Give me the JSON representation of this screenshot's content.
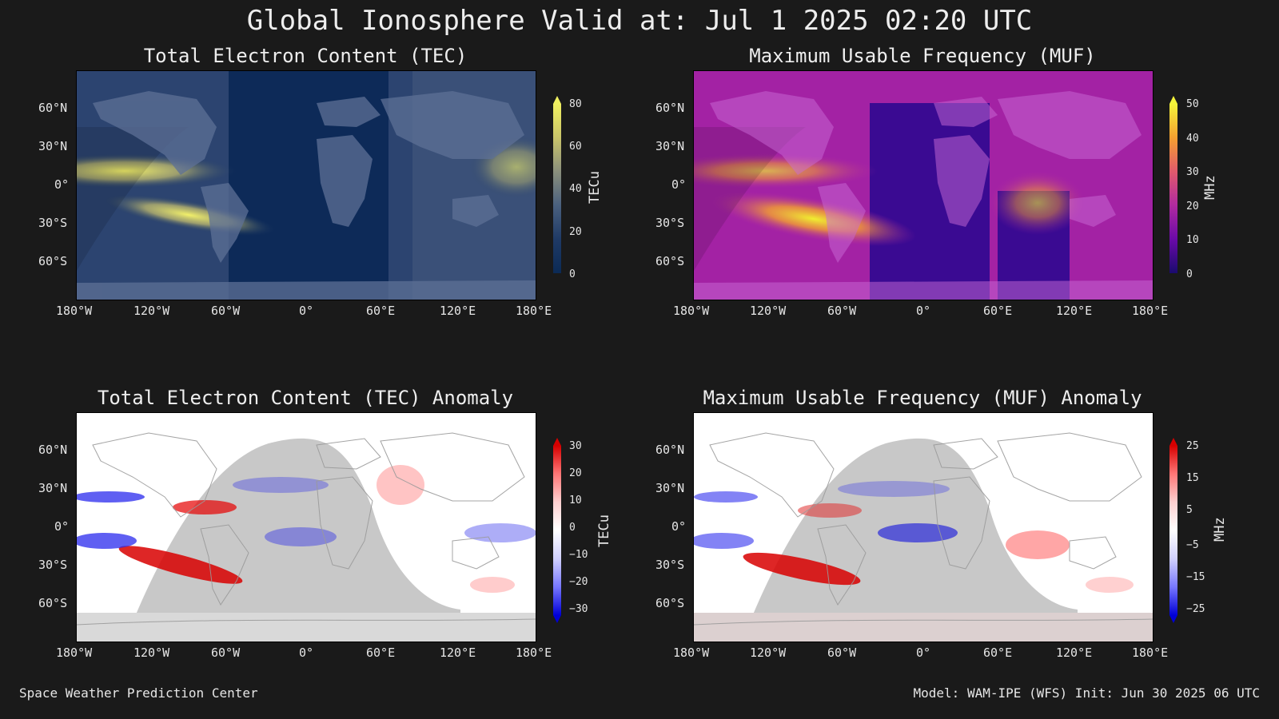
{
  "title": "Global Ionosphere Valid at: Jul 1 2025 02:20 UTC",
  "footer": {
    "left": "Space Weather Prediction Center",
    "right": "Model: WAM-IPE (WFS) Init: Jun 30 2025 06 UTC"
  },
  "axes": {
    "lon_ticks": [
      "180°W",
      "120°W",
      "60°W",
      "0°",
      "60°E",
      "120°E",
      "180°E"
    ],
    "lat_ticks": [
      "60°N",
      "30°N",
      "0°",
      "30°S",
      "60°S"
    ]
  },
  "panels": [
    {
      "id": "tec",
      "title": "Total Electron Content (TEC)",
      "colorbar_label": "TECu",
      "colorbar_ticks": [
        "80",
        "60",
        "40",
        "20",
        "0"
      ],
      "colors": [
        "#f0f060",
        "#c9c46a",
        "#8a8f7c",
        "#4a607e",
        "#1f3a66",
        "#0b2a55"
      ]
    },
    {
      "id": "muf",
      "title": "Maximum Usable Frequency (MUF)",
      "colorbar_label": "MHz",
      "colorbar_ticks": [
        "50",
        "40",
        "30",
        "20",
        "10",
        "0"
      ],
      "colors": [
        "#f5f43a",
        "#f5a030",
        "#e05a6c",
        "#b02aa0",
        "#6a0aa8",
        "#1a0b6e"
      ]
    },
    {
      "id": "tec-anomaly",
      "title": "Total Electron Content (TEC) Anomaly",
      "colorbar_label": "TECu",
      "colorbar_ticks": [
        "30",
        "20",
        "10",
        "0",
        "−10",
        "−20",
        "−30"
      ],
      "colors": [
        "#d60000",
        "#ff7777",
        "#ffd0d0",
        "#ffffff",
        "#d0d0ff",
        "#7777ff",
        "#0000d6"
      ]
    },
    {
      "id": "muf-anomaly",
      "title": "Maximum Usable Frequency (MUF) Anomaly",
      "colorbar_label": "MHz",
      "colorbar_ticks": [
        "25",
        "15",
        "5",
        "−5",
        "−15",
        "−25"
      ],
      "colors": [
        "#d60000",
        "#ff7777",
        "#ffd0d0",
        "#ffffff",
        "#d0d0ff",
        "#7777ff",
        "#0000d6"
      ]
    }
  ]
}
